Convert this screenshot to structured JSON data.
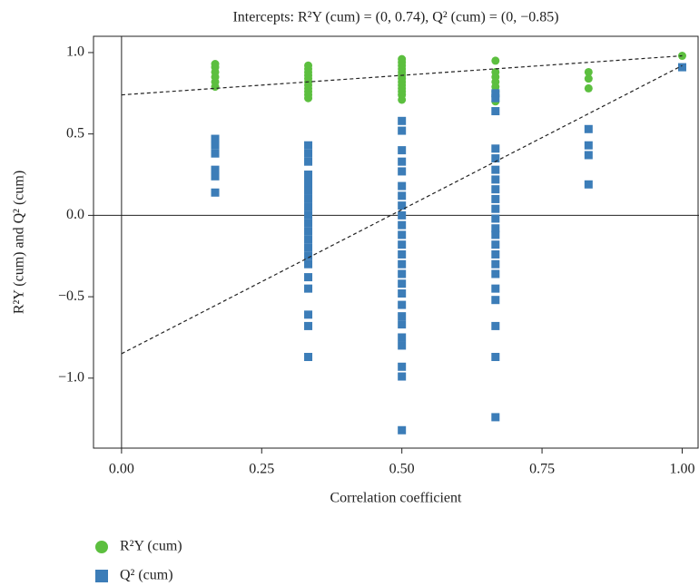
{
  "chart_data": {
    "type": "scatter",
    "title": "Intercepts: R²Y (cum) = (0, 0.74), Q² (cum) = (0, −0.85)",
    "xlabel": "Correlation coefficient",
    "ylabel": "R²Y (cum) and Q² (cum)",
    "xlim": [
      -0.05,
      1.03
    ],
    "ylim": [
      -1.43,
      1.1
    ],
    "xticks": [
      {
        "value": 0,
        "label": "0.00"
      },
      {
        "value": 0.25,
        "label": "0.25"
      },
      {
        "value": 0.5,
        "label": "0.50"
      },
      {
        "value": 0.75,
        "label": "0.75"
      },
      {
        "value": 1,
        "label": "1.00"
      }
    ],
    "yticks": [
      {
        "value": -1,
        "label": "−1.0"
      },
      {
        "value": -0.5,
        "label": "−0.5"
      },
      {
        "value": 0,
        "label": "0.0"
      },
      0.5,
      {
        "value": 1,
        "label": "1.0"
      }
    ],
    "legend": "below",
    "series": [
      {
        "name": "R²Y (cum)",
        "color": "#5cbf3f",
        "marker": "circle",
        "x": [
          0.167,
          0.167,
          0.167,
          0.167,
          0.167,
          0.167,
          0.333,
          0.333,
          0.333,
          0.333,
          0.333,
          0.333,
          0.333,
          0.333,
          0.333,
          0.333,
          0.333,
          0.5,
          0.5,
          0.5,
          0.5,
          0.5,
          0.5,
          0.5,
          0.5,
          0.5,
          0.5,
          0.5,
          0.5,
          0.5,
          0.667,
          0.667,
          0.667,
          0.667,
          0.667,
          0.667,
          0.667,
          0.667,
          0.833,
          0.833,
          0.833,
          1
        ],
        "y": [
          0.93,
          0.91,
          0.88,
          0.85,
          0.82,
          0.79,
          0.92,
          0.9,
          0.88,
          0.86,
          0.84,
          0.82,
          0.8,
          0.78,
          0.76,
          0.74,
          0.72,
          0.96,
          0.94,
          0.92,
          0.9,
          0.88,
          0.86,
          0.84,
          0.82,
          0.8,
          0.78,
          0.76,
          0.74,
          0.71,
          0.95,
          0.88,
          0.85,
          0.82,
          0.79,
          0.76,
          0.73,
          0.7,
          0.88,
          0.84,
          0.78,
          0.98
        ]
      },
      {
        "name": "Q² (cum)",
        "color": "#3c7db8",
        "marker": "square",
        "x": [
          0.167,
          0.167,
          0.167,
          0.167,
          0.167,
          0.167,
          0.333,
          0.333,
          0.333,
          0.333,
          0.333,
          0.333,
          0.333,
          0.333,
          0.333,
          0.333,
          0.333,
          0.333,
          0.333,
          0.333,
          0.333,
          0.333,
          0.333,
          0.333,
          0.333,
          0.333,
          0.5,
          0.5,
          0.5,
          0.5,
          0.5,
          0.5,
          0.5,
          0.5,
          0.5,
          0.5,
          0.5,
          0.5,
          0.5,
          0.5,
          0.5,
          0.5,
          0.5,
          0.5,
          0.5,
          0.5,
          0.5,
          0.5,
          0.5,
          0.5,
          0.5,
          0.667,
          0.667,
          0.667,
          0.667,
          0.667,
          0.667,
          0.667,
          0.667,
          0.667,
          0.667,
          0.667,
          0.667,
          0.667,
          0.667,
          0.667,
          0.667,
          0.667,
          0.667,
          0.667,
          0.667,
          0.667,
          0.667,
          0.833,
          0.833,
          0.833,
          0.833,
          1
        ],
        "y": [
          0.47,
          0.43,
          0.38,
          0.28,
          0.24,
          0.14,
          0.43,
          0.38,
          0.33,
          0.25,
          0.2,
          0.15,
          0.1,
          0.05,
          0.0,
          -0.05,
          -0.1,
          -0.15,
          -0.2,
          -0.25,
          -0.3,
          -0.38,
          -0.45,
          -0.61,
          -0.68,
          -0.87,
          0.58,
          0.52,
          0.4,
          0.33,
          0.27,
          0.18,
          0.12,
          0.06,
          0.0,
          -0.06,
          -0.12,
          -0.18,
          -0.24,
          -0.3,
          -0.36,
          -0.42,
          -0.48,
          -0.55,
          -0.62,
          -0.67,
          -0.75,
          -0.8,
          -0.93,
          -0.99,
          -1.32,
          0.75,
          0.72,
          0.64,
          0.41,
          0.35,
          0.28,
          0.22,
          0.16,
          0.1,
          0.04,
          -0.02,
          -0.08,
          -0.12,
          -0.18,
          -0.24,
          -0.3,
          -0.36,
          -0.45,
          -0.52,
          -0.68,
          -0.87,
          -1.24,
          0.53,
          0.43,
          0.37,
          0.19,
          0.91
        ]
      }
    ],
    "fit_lines": [
      {
        "x": [
          0,
          1
        ],
        "y": [
          0.74,
          0.98
        ]
      },
      {
        "x": [
          0,
          1
        ],
        "y": [
          -0.85,
          0.92
        ]
      }
    ]
  }
}
